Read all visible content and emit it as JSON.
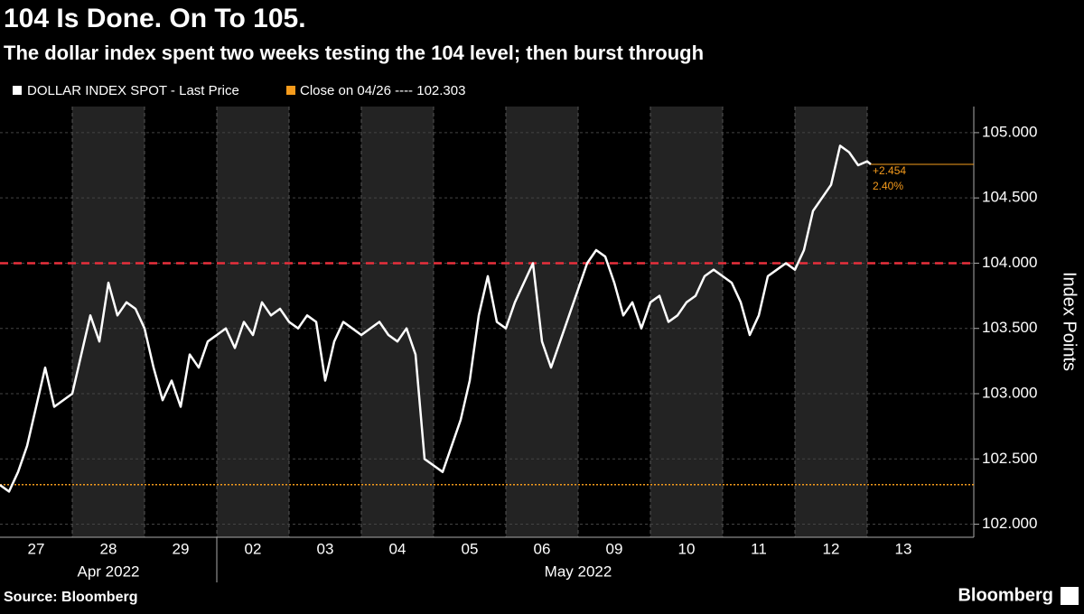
{
  "chart_data": {
    "type": "line",
    "title": "104 Is Done. On To 105.",
    "subtitle": "The dollar index spent two weeks testing the 104 level; then burst through",
    "y_label": "Index Points",
    "categories": [
      "27",
      "28",
      "29",
      "02",
      "03",
      "04",
      "05",
      "06",
      "09",
      "10",
      "11",
      "12",
      "13"
    ],
    "months": [
      "Apr 2022",
      "May 2022"
    ],
    "xlim": [
      0,
      13.475
    ],
    "ylim": [
      101.9,
      105.2
    ],
    "yticks": [
      {
        "value": 102,
        "label": "102.000"
      },
      {
        "value": 102.5,
        "label": "102.500"
      },
      {
        "value": 103,
        "label": "103.000"
      },
      {
        "value": 103.5,
        "label": "103.500"
      },
      {
        "value": 104,
        "label": "104.000"
      },
      {
        "value": 104.5,
        "label": "104.500"
      },
      {
        "value": 105,
        "label": "105.000"
      }
    ],
    "series": [
      {
        "name": "DOLLAR INDEX SPOT - Last Price",
        "color": "#ffffff",
        "x": [
          0,
          0.125,
          0.25,
          0.375,
          0.5,
          0.625,
          0.75,
          0.875,
          1,
          1.125,
          1.25,
          1.375,
          1.5,
          1.625,
          1.75,
          1.875,
          2,
          2.125,
          2.25,
          2.375,
          2.5,
          2.625,
          2.75,
          2.875,
          3,
          3.125,
          3.25,
          3.375,
          3.5,
          3.625,
          3.75,
          3.875,
          4,
          4.125,
          4.25,
          4.375,
          4.5,
          4.625,
          4.75,
          4.875,
          5,
          5.125,
          5.25,
          5.375,
          5.5,
          5.625,
          5.75,
          5.875,
          6,
          6.125,
          6.25,
          6.375,
          6.5,
          6.625,
          6.75,
          6.875,
          7,
          7.125,
          7.25,
          7.375,
          7.5,
          7.625,
          7.75,
          7.875,
          8,
          8.125,
          8.25,
          8.375,
          8.5,
          8.625,
          8.75,
          8.875,
          9,
          9.125,
          9.25,
          9.375,
          9.5,
          9.625,
          9.75,
          9.875,
          10,
          10.125,
          10.25,
          10.375,
          10.5,
          10.625,
          10.75,
          10.875,
          11,
          11.125,
          11.25,
          11.375,
          11.5,
          11.625,
          11.75,
          11.875,
          12,
          12.05
        ],
        "values": [
          102.3,
          102.25,
          102.4,
          102.6,
          102.9,
          103.2,
          102.9,
          102.95,
          103.0,
          103.3,
          103.6,
          103.4,
          103.85,
          103.6,
          103.7,
          103.65,
          103.5,
          103.2,
          102.95,
          103.1,
          102.9,
          103.3,
          103.2,
          103.4,
          103.45,
          103.5,
          103.35,
          103.55,
          103.45,
          103.7,
          103.6,
          103.65,
          103.55,
          103.5,
          103.6,
          103.55,
          103.1,
          103.4,
          103.55,
          103.5,
          103.45,
          103.5,
          103.55,
          103.45,
          103.4,
          103.5,
          103.3,
          102.5,
          102.45,
          102.4,
          102.6,
          102.8,
          103.1,
          103.6,
          103.9,
          103.55,
          103.5,
          103.7,
          103.85,
          104.0,
          103.4,
          103.2,
          103.4,
          103.6,
          103.8,
          104.0,
          104.1,
          104.05,
          103.85,
          103.6,
          103.7,
          103.5,
          103.7,
          103.75,
          103.55,
          103.6,
          103.7,
          103.75,
          103.9,
          103.95,
          103.9,
          103.85,
          103.7,
          103.45,
          103.6,
          103.9,
          103.95,
          104.0,
          103.95,
          104.1,
          104.4,
          104.5,
          104.6,
          104.9,
          104.85,
          104.75,
          104.78,
          104.757
        ]
      }
    ],
    "close_legend": "Close on 04/26 ---- 102.303",
    "close_value": 102.303,
    "close_color": "#f59b1c",
    "reference_value": 104,
    "reference_color": "#e8303c",
    "change_labels": [
      "+2.454",
      "2.40%"
    ],
    "source": "Source: Bloomberg",
    "brand": "Bloomberg"
  }
}
